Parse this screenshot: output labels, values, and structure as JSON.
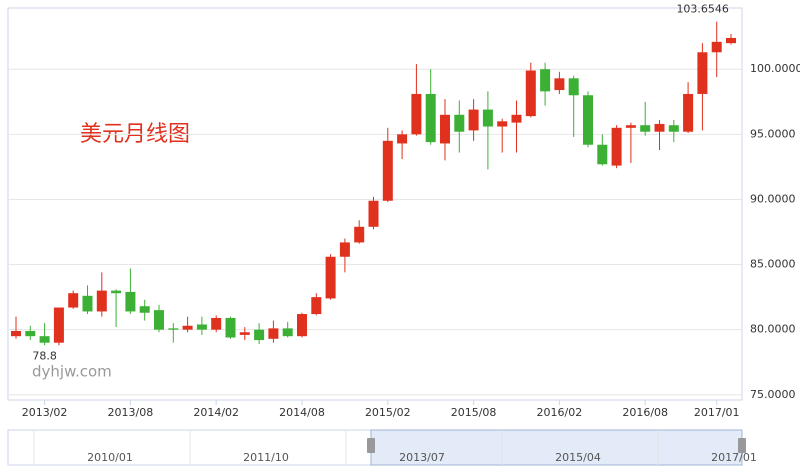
{
  "chart_data": {
    "type": "candlestick",
    "title": "美元月线图",
    "watermark": "dyhjw.com",
    "categories": [
      null,
      null,
      "2013/02",
      null,
      null,
      null,
      null,
      null,
      "2013/08",
      null,
      null,
      null,
      null,
      null,
      "2014/02",
      null,
      null,
      null,
      null,
      null,
      "2014/08",
      null,
      null,
      null,
      null,
      null,
      "2015/02",
      null,
      null,
      null,
      null,
      null,
      "2015/08",
      null,
      null,
      null,
      null,
      null,
      "2016/02",
      null,
      null,
      null,
      null,
      null,
      "2016/08",
      null,
      null,
      null,
      null,
      "2017/01",
      null
    ],
    "open": [
      79.5,
      79.9,
      79.5,
      79.0,
      81.7,
      82.6,
      81.4,
      83.0,
      82.9,
      81.8,
      81.5,
      80.1,
      80.0,
      80.4,
      80.0,
      80.9,
      79.6,
      80.0,
      79.3,
      80.1,
      79.5,
      81.2,
      82.4,
      85.6,
      86.7,
      87.9,
      89.9,
      94.3,
      95.0,
      98.1,
      94.3,
      96.5,
      95.3,
      96.9,
      95.6,
      95.9,
      96.4,
      100.0,
      98.4,
      99.3,
      98.0,
      94.2,
      92.6,
      95.5,
      95.7,
      95.2,
      95.7,
      95.2,
      98.1,
      101.3,
      102.0
    ],
    "high": [
      81.0,
      80.3,
      80.5,
      81.7,
      83.0,
      83.4,
      84.4,
      83.1,
      84.7,
      82.3,
      81.9,
      80.5,
      81.0,
      81.0,
      81.1,
      81.0,
      80.2,
      80.5,
      80.7,
      80.6,
      81.3,
      82.8,
      85.8,
      87.0,
      88.4,
      90.2,
      95.5,
      95.3,
      100.4,
      100.0,
      97.7,
      97.6,
      97.7,
      98.3,
      96.2,
      97.6,
      100.5,
      100.5,
      99.8,
      99.5,
      98.3,
      95.0,
      95.7,
      95.9,
      97.5,
      96.1,
      96.1,
      99.0,
      102.0,
      103.6546,
      102.7
    ],
    "low": [
      79.3,
      79.2,
      78.8,
      78.8,
      81.6,
      81.2,
      81.0,
      80.2,
      81.2,
      80.7,
      79.8,
      79.0,
      79.8,
      79.6,
      79.8,
      79.3,
      79.2,
      78.9,
      79.0,
      79.4,
      79.4,
      81.1,
      82.3,
      84.4,
      86.6,
      87.7,
      89.8,
      93.1,
      94.9,
      94.2,
      93.0,
      93.6,
      94.5,
      92.3,
      93.6,
      93.6,
      96.3,
      97.2,
      98.1,
      94.8,
      94.0,
      92.6,
      92.4,
      92.8,
      94.9,
      93.8,
      94.4,
      95.1,
      95.3,
      99.4,
      101.9
    ],
    "close": [
      79.9,
      79.5,
      79.0,
      81.7,
      82.8,
      81.4,
      83.0,
      82.8,
      81.4,
      81.3,
      80.0,
      80.0,
      80.3,
      80.0,
      80.9,
      79.4,
      79.8,
      79.2,
      80.1,
      79.5,
      81.2,
      82.5,
      85.6,
      86.7,
      87.9,
      89.9,
      94.5,
      95.0,
      98.1,
      94.4,
      96.5,
      95.2,
      96.9,
      95.6,
      96.0,
      96.5,
      99.9,
      98.3,
      99.3,
      98.0,
      94.2,
      92.7,
      95.5,
      95.7,
      95.2,
      95.8,
      95.2,
      98.1,
      101.3,
      102.1,
      102.4
    ],
    "up_color": "#e0301e",
    "down_color": "#3cb034",
    "ylim": [
      74.6,
      104.7
    ],
    "yticks": [
      {
        "value": 75,
        "label": "75.0000"
      },
      {
        "value": 80,
        "label": "80.0000"
      },
      {
        "value": 85,
        "label": "85.0000"
      },
      {
        "value": 90,
        "label": "90.0000"
      },
      {
        "value": 95,
        "label": "95.0000"
      },
      {
        "value": 100,
        "label": "100.0000"
      }
    ],
    "grid": true,
    "navigator_labels": [
      "2010/01",
      "2011/10",
      "2013/07",
      "2015/04",
      "2017/01"
    ]
  }
}
